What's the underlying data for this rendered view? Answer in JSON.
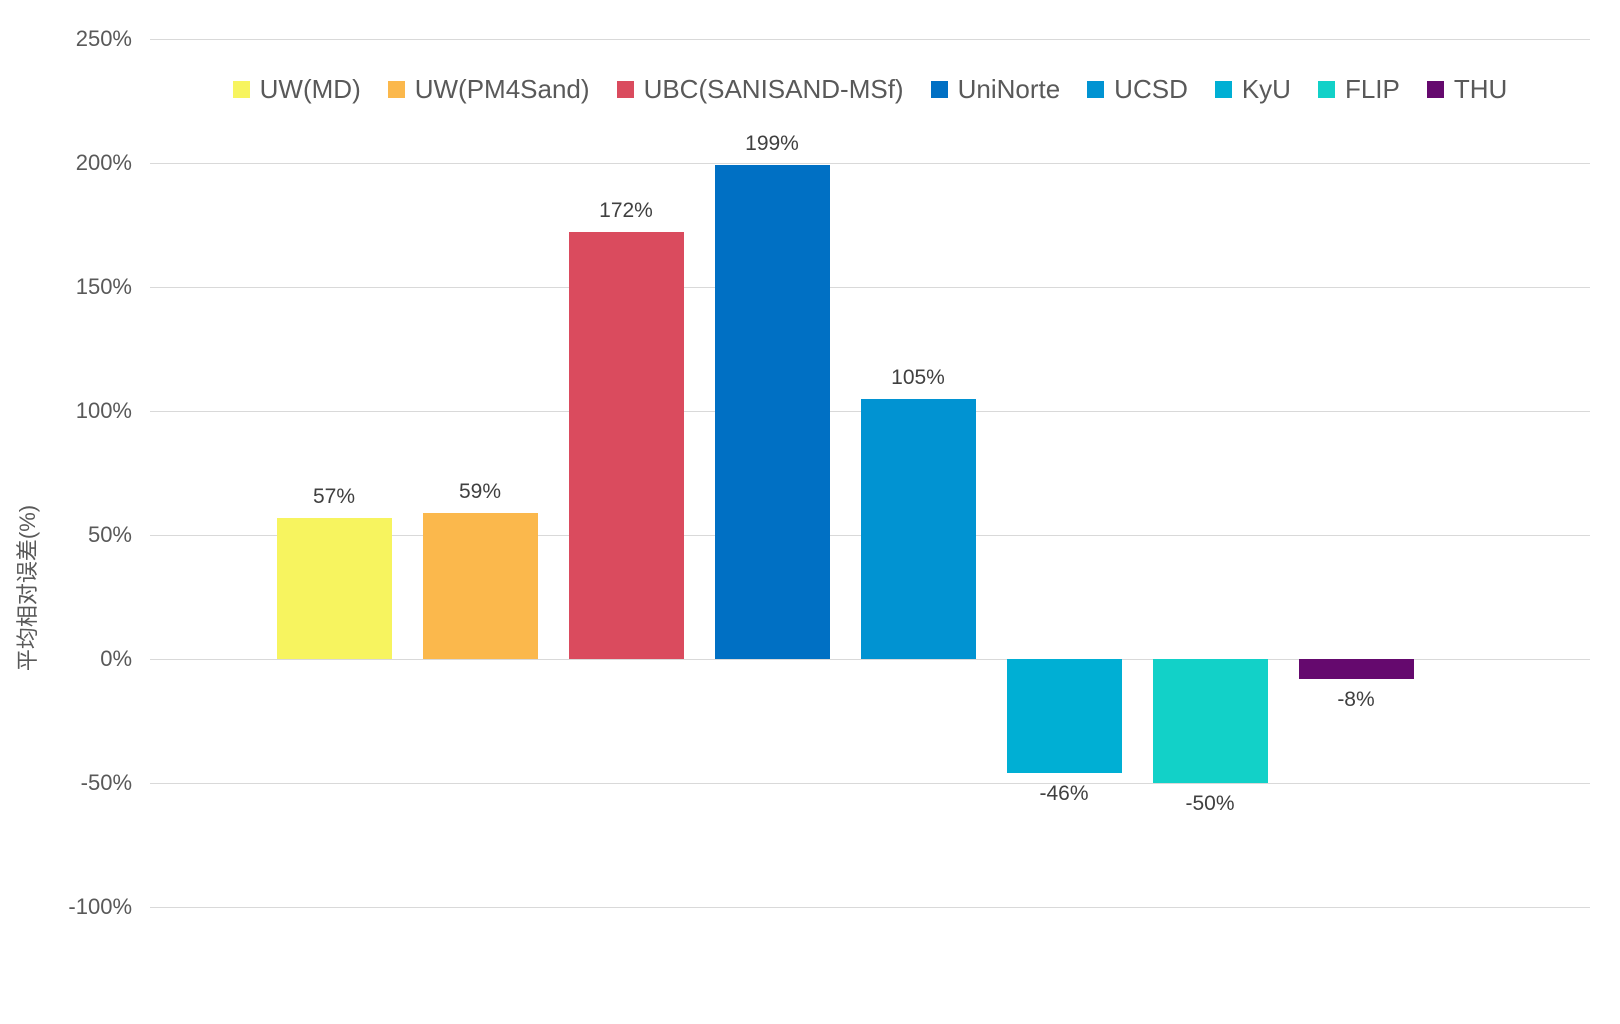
{
  "chart_data": {
    "type": "bar",
    "title": "",
    "xlabel": "",
    "ylabel": "平均相对误差(%)",
    "ylim": [
      -100,
      250
    ],
    "grid": true,
    "legend_position": "top",
    "y_ticks": [
      {
        "label": "250%",
        "value": 250
      },
      {
        "label": "200%",
        "value": 200
      },
      {
        "label": "150%",
        "value": 150
      },
      {
        "label": "100%",
        "value": 100
      },
      {
        "label": "50%",
        "value": 50
      },
      {
        "label": "0%",
        "value": 0
      },
      {
        "label": "-50%",
        "value": -50
      },
      {
        "label": "-100%",
        "value": -100
      }
    ],
    "series": [
      {
        "name": "UW(MD)",
        "value": 57,
        "label": "57%",
        "color": "#F7F45F"
      },
      {
        "name": "UW(PM4Sand)",
        "value": 59,
        "label": "59%",
        "color": "#FBB84C"
      },
      {
        "name": "UBC(SANISAND-MSf)",
        "value": 172,
        "label": "172%",
        "color": "#DA4B5E"
      },
      {
        "name": "UniNorte",
        "value": 199,
        "label": "199%",
        "color": "#0070C4"
      },
      {
        "name": "UCSD",
        "value": 105,
        "label": "105%",
        "color": "#0193D2"
      },
      {
        "name": "KyU",
        "value": -46,
        "label": "-46%",
        "color": "#00AFD4"
      },
      {
        "name": "FLIP",
        "value": -50,
        "label": "-50%",
        "color": "#12D1C8"
      },
      {
        "name": "THU",
        "value": -8,
        "label": "-8%",
        "color": "#65096E"
      }
    ]
  },
  "colors": {
    "background": "#FFFFFF",
    "gridline": "#D9D9D9",
    "tick_text": "#595959",
    "legend_text": "#595959",
    "data_label_text": "#404040",
    "axis_title_text": "#595959"
  }
}
